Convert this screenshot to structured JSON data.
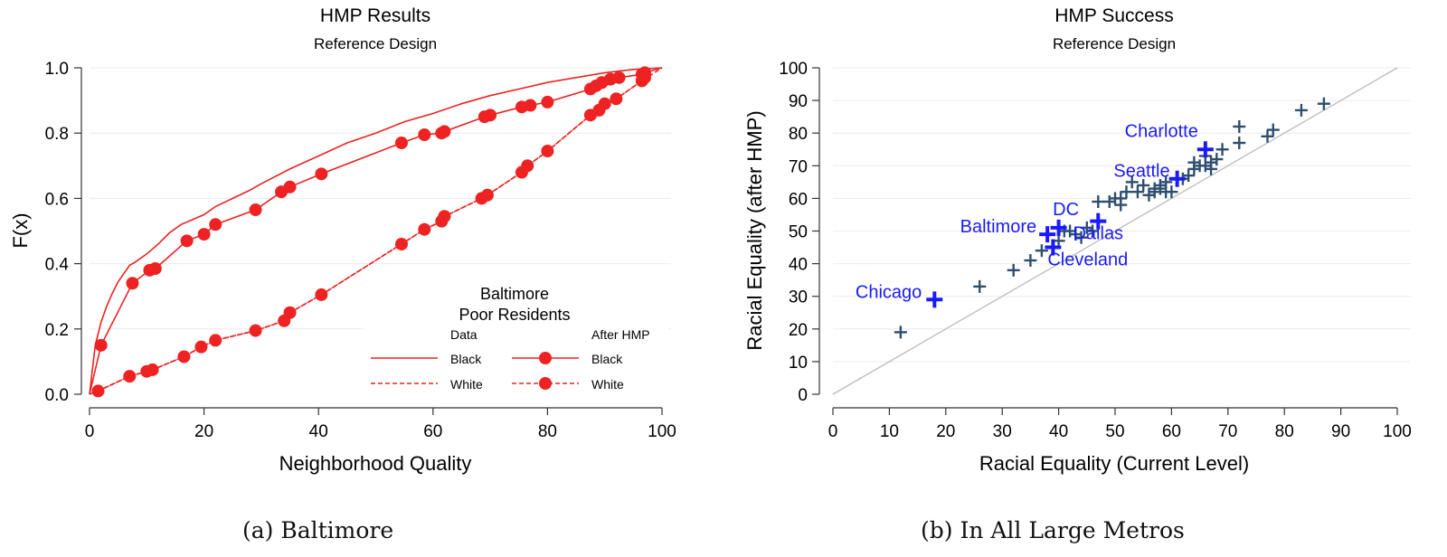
{
  "chart_data": [
    {
      "type": "line",
      "title": "HMP Results",
      "subtitle": "Reference Design",
      "xlabel": "Neighborhood Quality",
      "ylabel": "F(x)",
      "xlim": [
        0,
        100
      ],
      "ylim": [
        0,
        1
      ],
      "xticks": [
        "0",
        "20",
        "40",
        "60",
        "80",
        "100"
      ],
      "yticks": [
        "0.0",
        "0.2",
        "0.4",
        "0.6",
        "0.8",
        "1.0"
      ],
      "grid": true,
      "legend": {
        "title_line1": "Baltimore",
        "title_line2": "Poor Residents",
        "col1_header": "Data",
        "col2_header": "After HMP",
        "labels": [
          "Black",
          "White",
          "Black",
          "White"
        ],
        "position": "bottom-right"
      },
      "series": [
        {
          "name": "Black",
          "group": "Data",
          "style": "solid",
          "color": "#ee2222",
          "x": [
            0,
            1,
            2,
            3,
            4,
            5,
            6,
            7,
            8,
            10,
            12,
            14,
            16,
            18,
            20,
            22,
            25,
            28,
            30,
            35,
            40,
            45,
            50,
            55,
            60,
            65,
            70,
            75,
            80,
            85,
            90,
            95,
            100
          ],
          "y": [
            0,
            0.15,
            0.22,
            0.27,
            0.31,
            0.345,
            0.37,
            0.395,
            0.405,
            0.43,
            0.46,
            0.495,
            0.52,
            0.535,
            0.55,
            0.575,
            0.6,
            0.625,
            0.645,
            0.69,
            0.73,
            0.77,
            0.8,
            0.835,
            0.86,
            0.89,
            0.915,
            0.935,
            0.955,
            0.97,
            0.985,
            0.995,
            1.0
          ]
        },
        {
          "name": "White",
          "group": "Data",
          "style": "dashed",
          "color": "#ee2222",
          "x": [
            0,
            1.5,
            7,
            10,
            11,
            16.5,
            19.5,
            22,
            29,
            34,
            35,
            40.5,
            54.5,
            58.5,
            61.5,
            62,
            68.5,
            69.5,
            75.5,
            76.5,
            80,
            87.5,
            89,
            90,
            92,
            96.5,
            100
          ],
          "y": [
            0,
            0.01,
            0.055,
            0.07,
            0.075,
            0.115,
            0.145,
            0.165,
            0.195,
            0.225,
            0.25,
            0.305,
            0.46,
            0.505,
            0.53,
            0.545,
            0.6,
            0.61,
            0.68,
            0.7,
            0.745,
            0.855,
            0.87,
            0.89,
            0.905,
            0.96,
            1.0
          ]
        },
        {
          "name": "Black",
          "group": "After HMP",
          "style": "solid",
          "color": "#ee2222",
          "marker": "circle",
          "x": [
            0,
            2,
            7.5,
            10.5,
            11.5,
            17,
            20,
            22,
            29,
            33.5,
            35,
            40.5,
            54.5,
            58.5,
            61.5,
            62,
            69,
            70,
            75.5,
            77,
            80,
            87.5,
            88.5,
            89.5,
            91,
            92.5,
            96.5,
            97,
            100
          ],
          "y": [
            0,
            0.15,
            0.34,
            0.38,
            0.385,
            0.47,
            0.49,
            0.52,
            0.565,
            0.62,
            0.635,
            0.675,
            0.77,
            0.795,
            0.8,
            0.805,
            0.85,
            0.855,
            0.88,
            0.885,
            0.895,
            0.935,
            0.945,
            0.955,
            0.965,
            0.97,
            0.98,
            0.985,
            1.0
          ]
        },
        {
          "name": "White",
          "group": "After HMP",
          "style": "dashed",
          "color": "#ee2222",
          "marker": "circle",
          "x": [
            1.5,
            7,
            10,
            11,
            16.5,
            19.5,
            22,
            29,
            34,
            35,
            40.5,
            54.5,
            58.5,
            61.5,
            62,
            68.5,
            69.5,
            75.5,
            76.5,
            80,
            87.5,
            89,
            90,
            92,
            96.5,
            97
          ],
          "y": [
            0.01,
            0.055,
            0.07,
            0.075,
            0.115,
            0.145,
            0.165,
            0.195,
            0.225,
            0.25,
            0.305,
            0.46,
            0.505,
            0.53,
            0.545,
            0.6,
            0.61,
            0.68,
            0.7,
            0.745,
            0.855,
            0.87,
            0.89,
            0.905,
            0.96,
            0.97
          ]
        }
      ],
      "caption": "(a) Baltimore"
    },
    {
      "type": "scatter",
      "title": "HMP Success",
      "subtitle": "Reference Design",
      "xlabel": "Racial Equality (Current Level)",
      "ylabel": "Racial Equality (after HMP)",
      "xlim": [
        0,
        100
      ],
      "ylim": [
        0,
        100
      ],
      "xticks": [
        "0",
        "10",
        "20",
        "30",
        "40",
        "50",
        "60",
        "70",
        "80",
        "90",
        "100"
      ],
      "yticks": [
        "0",
        "10",
        "20",
        "30",
        "40",
        "50",
        "60",
        "70",
        "80",
        "90",
        "100"
      ],
      "grid": true,
      "reference_line": {
        "from": [
          0,
          0
        ],
        "to": [
          100,
          100
        ],
        "color": "#bbbbbb"
      },
      "marker": "plus",
      "point_color": "#2f4f6f",
      "highlight_color": "#1a1aff",
      "points": [
        [
          12,
          19
        ],
        [
          26,
          33
        ],
        [
          32,
          38
        ],
        [
          35,
          41
        ],
        [
          37,
          44
        ],
        [
          40,
          47
        ],
        [
          41,
          50
        ],
        [
          42,
          50
        ],
        [
          43,
          49
        ],
        [
          44,
          48
        ],
        [
          45,
          51
        ],
        [
          46,
          50
        ],
        [
          47,
          59
        ],
        [
          49,
          59
        ],
        [
          50,
          60
        ],
        [
          51,
          58
        ],
        [
          51,
          60
        ],
        [
          52,
          62
        ],
        [
          53,
          65
        ],
        [
          54,
          62
        ],
        [
          55,
          64
        ],
        [
          56,
          61
        ],
        [
          57,
          62
        ],
        [
          57,
          63
        ],
        [
          58,
          63
        ],
        [
          58,
          64
        ],
        [
          59,
          62
        ],
        [
          59,
          65
        ],
        [
          60,
          62
        ],
        [
          61,
          66
        ],
        [
          62,
          66
        ],
        [
          63,
          67
        ],
        [
          64,
          69
        ],
        [
          64,
          71
        ],
        [
          65,
          70
        ],
        [
          66,
          70
        ],
        [
          66,
          73
        ],
        [
          67,
          69
        ],
        [
          67,
          71
        ],
        [
          68,
          72
        ],
        [
          69,
          75
        ],
        [
          72,
          82
        ],
        [
          72,
          77
        ],
        [
          77,
          79
        ],
        [
          78,
          81
        ],
        [
          83,
          87
        ],
        [
          87,
          89
        ]
      ],
      "highlighted": [
        {
          "label": "Charlotte",
          "x": 66,
          "y": 75
        },
        {
          "label": "Seattle",
          "x": 61,
          "y": 66
        },
        {
          "label": "DC",
          "x": 40,
          "y": 51
        },
        {
          "label": "Baltimore",
          "x": 38,
          "y": 49
        },
        {
          "label": "Dallas",
          "x": 47,
          "y": 53
        },
        {
          "label": "Cleveland",
          "x": 39,
          "y": 45
        },
        {
          "label": "Chicago",
          "x": 18,
          "y": 29
        }
      ],
      "caption": "(b) In All Large Metros"
    }
  ]
}
